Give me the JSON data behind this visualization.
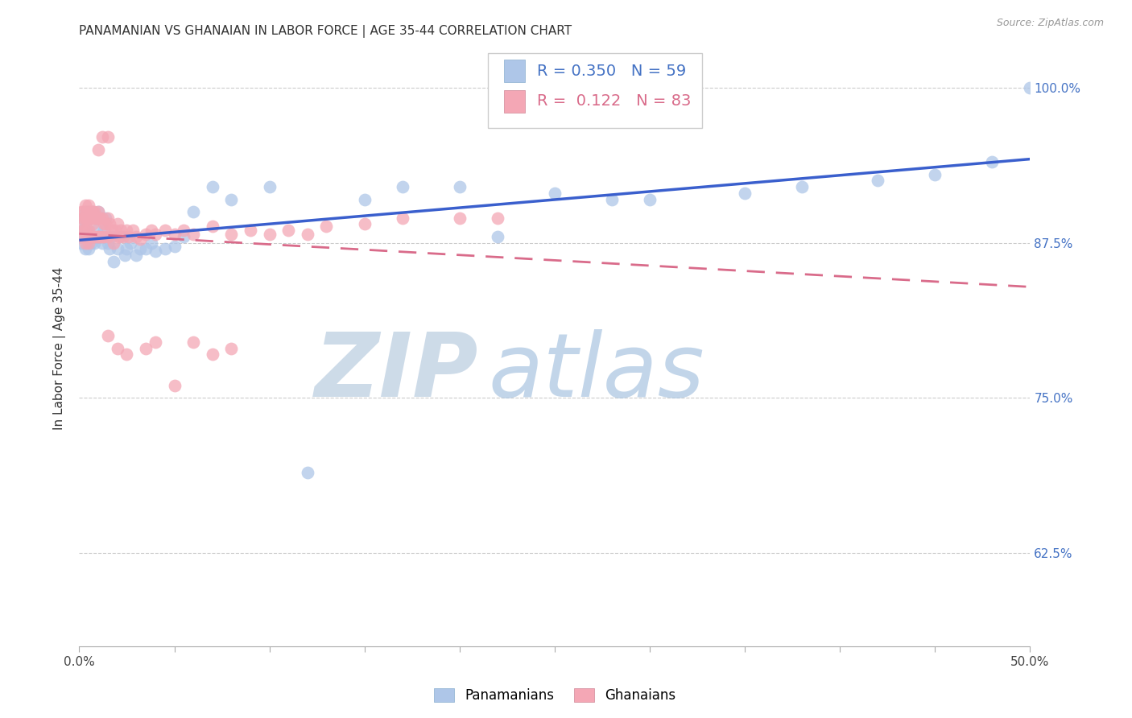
{
  "title": "PANAMANIAN VS GHANAIAN IN LABOR FORCE | AGE 35-44 CORRELATION CHART",
  "source": "Source: ZipAtlas.com",
  "ylabel": "In Labor Force | Age 35-44",
  "r_pan": 0.35,
  "n_pan": 59,
  "r_gha": 0.122,
  "n_gha": 83,
  "xlim": [
    0.0,
    0.5
  ],
  "ylim": [
    0.55,
    1.03
  ],
  "yticks": [
    0.625,
    0.75,
    0.875,
    1.0
  ],
  "ytick_labels": [
    "62.5%",
    "75.0%",
    "87.5%",
    "100.0%"
  ],
  "xtick_pos": [
    0.0,
    0.05,
    0.1,
    0.15,
    0.2,
    0.25,
    0.3,
    0.35,
    0.4,
    0.45,
    0.5
  ],
  "xtick_labels": [
    "0.0%",
    "",
    "",
    "",
    "",
    "",
    "",
    "",
    "",
    "",
    "50.0%"
  ],
  "color_pan": "#aec6e8",
  "color_gha": "#f4a7b5",
  "line_color_pan": "#3a5fcd",
  "line_color_gha": "#d96b8a",
  "watermark_zip": "ZIP",
  "watermark_atlas": "atlas",
  "watermark_color_zip": "#c8d8e8",
  "watermark_color_atlas": "#b8cfe8",
  "title_fontsize": 11,
  "axis_label_fontsize": 11,
  "tick_fontsize": 11,
  "pan_x": [
    0.001,
    0.001,
    0.002,
    0.002,
    0.003,
    0.003,
    0.003,
    0.004,
    0.004,
    0.005,
    0.005,
    0.006,
    0.006,
    0.007,
    0.007,
    0.008,
    0.008,
    0.009,
    0.01,
    0.01,
    0.011,
    0.012,
    0.013,
    0.014,
    0.015,
    0.016,
    0.017,
    0.018,
    0.02,
    0.022,
    0.024,
    0.025,
    0.027,
    0.03,
    0.032,
    0.035,
    0.038,
    0.04,
    0.045,
    0.05,
    0.055,
    0.06,
    0.07,
    0.08,
    0.1,
    0.12,
    0.15,
    0.17,
    0.2,
    0.22,
    0.25,
    0.28,
    0.3,
    0.35,
    0.38,
    0.42,
    0.45,
    0.48,
    0.5
  ],
  "pan_y": [
    0.88,
    0.875,
    0.895,
    0.885,
    0.9,
    0.89,
    0.87,
    0.895,
    0.885,
    0.9,
    0.87,
    0.895,
    0.875,
    0.9,
    0.88,
    0.895,
    0.875,
    0.885,
    0.9,
    0.88,
    0.895,
    0.875,
    0.885,
    0.895,
    0.875,
    0.87,
    0.88,
    0.86,
    0.87,
    0.88,
    0.865,
    0.87,
    0.875,
    0.865,
    0.87,
    0.87,
    0.875,
    0.868,
    0.87,
    0.872,
    0.88,
    0.9,
    0.92,
    0.91,
    0.92,
    0.69,
    0.91,
    0.92,
    0.92,
    0.88,
    0.915,
    0.91,
    0.91,
    0.915,
    0.92,
    0.925,
    0.93,
    0.94,
    1.0
  ],
  "gha_x": [
    0.001,
    0.001,
    0.001,
    0.002,
    0.002,
    0.002,
    0.003,
    0.003,
    0.003,
    0.003,
    0.004,
    0.004,
    0.004,
    0.005,
    0.005,
    0.005,
    0.005,
    0.006,
    0.006,
    0.006,
    0.007,
    0.007,
    0.007,
    0.008,
    0.008,
    0.008,
    0.009,
    0.009,
    0.01,
    0.01,
    0.01,
    0.011,
    0.011,
    0.012,
    0.012,
    0.013,
    0.013,
    0.014,
    0.015,
    0.015,
    0.016,
    0.017,
    0.018,
    0.019,
    0.02,
    0.021,
    0.022,
    0.023,
    0.025,
    0.026,
    0.028,
    0.03,
    0.032,
    0.035,
    0.038,
    0.04,
    0.045,
    0.05,
    0.055,
    0.06,
    0.07,
    0.08,
    0.09,
    0.1,
    0.11,
    0.12,
    0.13,
    0.15,
    0.17,
    0.2,
    0.22,
    0.015,
    0.02,
    0.025,
    0.035,
    0.04,
    0.05,
    0.06,
    0.07,
    0.08,
    0.01,
    0.012,
    0.015
  ],
  "gha_y": [
    0.9,
    0.89,
    0.88,
    0.9,
    0.895,
    0.885,
    0.905,
    0.895,
    0.885,
    0.875,
    0.9,
    0.895,
    0.88,
    0.905,
    0.895,
    0.885,
    0.875,
    0.9,
    0.895,
    0.88,
    0.9,
    0.89,
    0.88,
    0.9,
    0.895,
    0.88,
    0.895,
    0.88,
    0.9,
    0.895,
    0.88,
    0.895,
    0.88,
    0.895,
    0.88,
    0.89,
    0.88,
    0.89,
    0.895,
    0.88,
    0.89,
    0.885,
    0.875,
    0.885,
    0.89,
    0.88,
    0.885,
    0.88,
    0.885,
    0.88,
    0.885,
    0.88,
    0.878,
    0.882,
    0.885,
    0.882,
    0.885,
    0.882,
    0.885,
    0.882,
    0.888,
    0.882,
    0.885,
    0.882,
    0.885,
    0.882,
    0.888,
    0.89,
    0.895,
    0.895,
    0.895,
    0.8,
    0.79,
    0.785,
    0.79,
    0.795,
    0.76,
    0.795,
    0.785,
    0.79,
    0.95,
    0.96,
    0.96
  ]
}
